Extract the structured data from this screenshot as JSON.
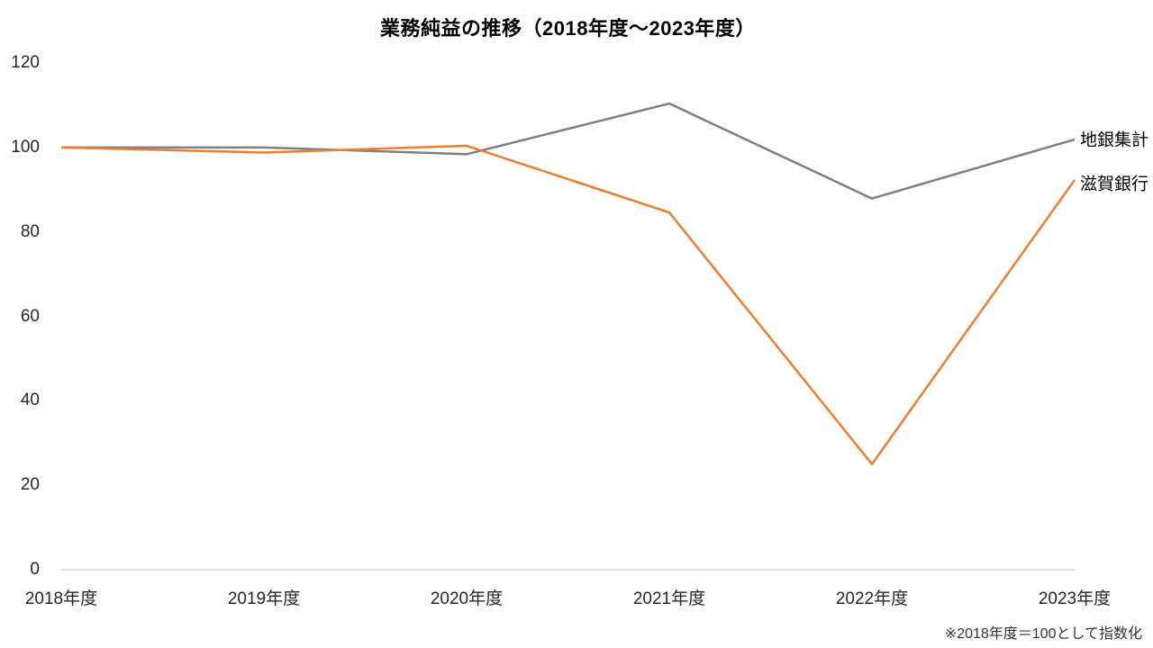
{
  "chart_data": {
    "type": "line",
    "title": "業務純益の推移（2018年度～2023年度）",
    "categories": [
      "2018年度",
      "2019年度",
      "2020年度",
      "2021年度",
      "2022年度",
      "2023年度"
    ],
    "series": [
      {
        "name": "地銀集計",
        "color": "#7F7F7F",
        "values": [
          100,
          100,
          98.4,
          110.4,
          87.9,
          101.9
        ]
      },
      {
        "name": "滋賀銀行",
        "color": "#ED7D31",
        "values": [
          100,
          98.8,
          100.4,
          84.6,
          25.0,
          92.3
        ]
      }
    ],
    "xlabel": "",
    "ylabel": "",
    "ylim": [
      0,
      120
    ],
    "yticks": [
      0,
      20,
      40,
      60,
      80,
      100,
      120
    ],
    "grid": false,
    "legend_position": "line-end-labels-right",
    "axis_line_color": "#D9D9D9",
    "tick_label_color": "#262626",
    "annotations": [
      "※2018年度＝100として指数化"
    ]
  }
}
